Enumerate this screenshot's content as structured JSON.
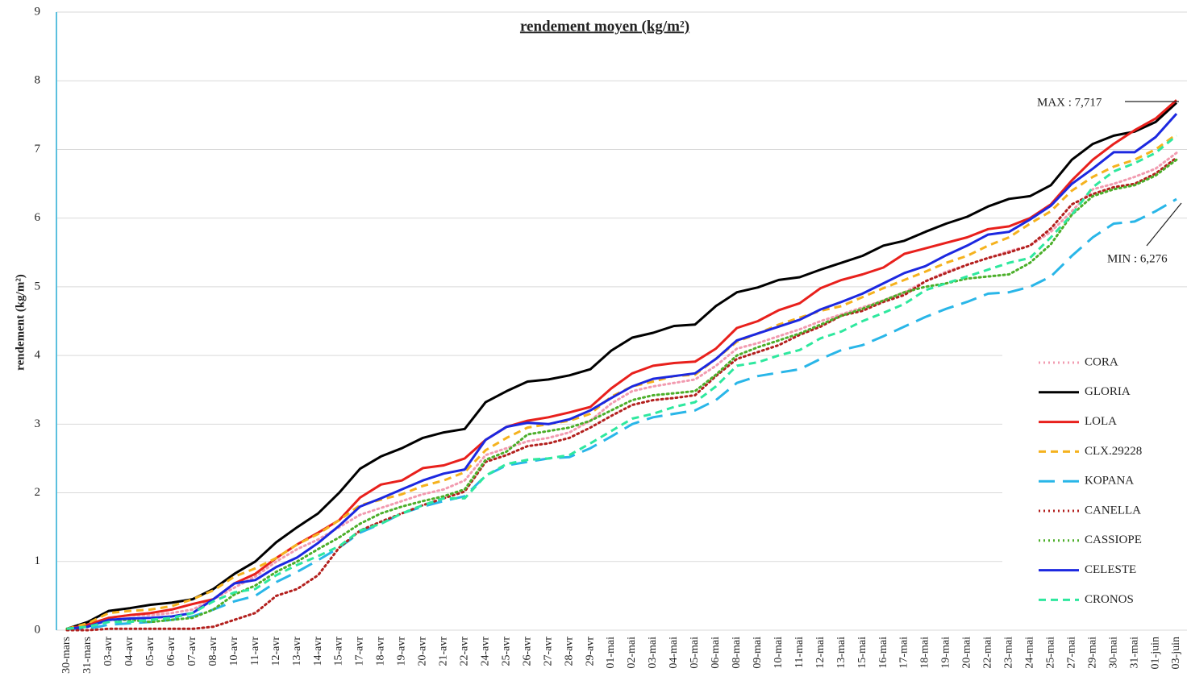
{
  "chart_data": {
    "type": "line",
    "title": "rendement moyen (kg/m²)",
    "y_label": "rendement (kg/m²)",
    "categories": [
      "30-mars",
      "31-mars",
      "03-avr",
      "04-avr",
      "05-avr",
      "06-avr",
      "07-avr",
      "08-avr",
      "10-avr",
      "11-avr",
      "12-avr",
      "13-avr",
      "14-avr",
      "15-avr",
      "17-avr",
      "18-avr",
      "19-avr",
      "20-avr",
      "21-avr",
      "22-avr",
      "24-avr",
      "25-avr",
      "26-avr",
      "27-avr",
      "28-avr",
      "29-avr",
      "01-mai",
      "02-mai",
      "03-mai",
      "04-mai",
      "05-mai",
      "06-mai",
      "08-mai",
      "09-mai",
      "10-mai",
      "11-mai",
      "12-mai",
      "13-mai",
      "15-mai",
      "16-mai",
      "17-mai",
      "18-mai",
      "19-mai",
      "20-mai",
      "22-mai",
      "23-mai",
      "24-mai",
      "25-mai",
      "27-mai",
      "29-mai",
      "30-mai",
      "31-mai",
      "01-juin",
      "03-juin"
    ],
    "ylim": [
      0,
      9
    ],
    "yticks": [
      0,
      1,
      2,
      3,
      4,
      5,
      6,
      7,
      8,
      9
    ],
    "grid": true,
    "series": [
      {
        "name": "CORA",
        "color": "#f29bb0",
        "dash": "dotted",
        "values": [
          0.02,
          0.08,
          0.18,
          0.22,
          0.22,
          0.25,
          0.3,
          0.45,
          0.62,
          0.78,
          1.0,
          1.18,
          1.32,
          1.5,
          1.68,
          1.78,
          1.88,
          1.98,
          2.05,
          2.18,
          2.55,
          2.65,
          2.75,
          2.8,
          2.88,
          3.05,
          3.3,
          3.48,
          3.55,
          3.6,
          3.65,
          3.85,
          4.1,
          4.18,
          4.28,
          4.38,
          4.5,
          4.6,
          4.7,
          4.8,
          4.92,
          5.08,
          5.22,
          5.32,
          5.42,
          5.52,
          5.6,
          5.8,
          6.1,
          6.42,
          6.5,
          6.6,
          6.72,
          6.95
        ]
      },
      {
        "name": "GLORIA",
        "color": "#000000",
        "dash": "solid",
        "values": [
          0.02,
          0.12,
          0.28,
          0.32,
          0.37,
          0.4,
          0.45,
          0.6,
          0.82,
          1.0,
          1.28,
          1.5,
          1.7,
          2.0,
          2.35,
          2.53,
          2.65,
          2.8,
          2.88,
          2.93,
          3.32,
          3.48,
          3.62,
          3.65,
          3.71,
          3.8,
          4.07,
          4.26,
          4.33,
          4.43,
          4.45,
          4.72,
          4.92,
          4.99,
          5.1,
          5.14,
          5.25,
          5.35,
          5.45,
          5.6,
          5.67,
          5.8,
          5.92,
          6.02,
          6.17,
          6.28,
          6.32,
          6.48,
          6.85,
          7.08,
          7.2,
          7.26,
          7.4,
          7.68
        ]
      },
      {
        "name": "LOLA",
        "color": "#e8201c",
        "dash": "solid",
        "values": [
          0.02,
          0.08,
          0.18,
          0.22,
          0.25,
          0.3,
          0.38,
          0.45,
          0.68,
          0.82,
          1.05,
          1.25,
          1.42,
          1.6,
          1.93,
          2.12,
          2.18,
          2.36,
          2.4,
          2.5,
          2.77,
          2.96,
          3.05,
          3.1,
          3.17,
          3.25,
          3.52,
          3.74,
          3.85,
          3.89,
          3.91,
          4.1,
          4.4,
          4.5,
          4.66,
          4.76,
          4.98,
          5.1,
          5.18,
          5.28,
          5.48,
          5.56,
          5.64,
          5.72,
          5.84,
          5.88,
          6.0,
          6.2,
          6.55,
          6.85,
          7.08,
          7.28,
          7.45,
          7.717
        ]
      },
      {
        "name": "CLX.29228",
        "color": "#f5b21e",
        "dash": "dashed",
        "values": [
          0.02,
          0.1,
          0.25,
          0.28,
          0.3,
          0.35,
          0.45,
          0.58,
          0.78,
          0.9,
          1.05,
          1.25,
          1.4,
          1.6,
          1.82,
          1.9,
          1.98,
          2.1,
          2.18,
          2.3,
          2.62,
          2.8,
          2.95,
          3.0,
          3.05,
          3.15,
          3.4,
          3.55,
          3.62,
          3.7,
          3.72,
          3.95,
          4.2,
          4.32,
          4.45,
          4.55,
          4.65,
          4.72,
          4.85,
          4.98,
          5.1,
          5.22,
          5.35,
          5.45,
          5.6,
          5.72,
          5.92,
          6.1,
          6.4,
          6.6,
          6.75,
          6.85,
          7.0,
          7.22
        ]
      },
      {
        "name": "KOPANA",
        "color": "#29b6e8",
        "dash": "long",
        "values": [
          0.02,
          0.02,
          0.08,
          0.1,
          0.12,
          0.15,
          0.2,
          0.3,
          0.42,
          0.5,
          0.7,
          0.85,
          1.02,
          1.2,
          1.42,
          1.55,
          1.7,
          1.8,
          1.88,
          1.95,
          2.25,
          2.4,
          2.45,
          2.5,
          2.52,
          2.65,
          2.82,
          3.0,
          3.1,
          3.15,
          3.2,
          3.35,
          3.6,
          3.7,
          3.75,
          3.8,
          3.95,
          4.08,
          4.15,
          4.28,
          4.42,
          4.56,
          4.68,
          4.78,
          4.9,
          4.92,
          5.0,
          5.15,
          5.45,
          5.72,
          5.92,
          5.95,
          6.1,
          6.276
        ]
      },
      {
        "name": "CANELLA",
        "color": "#b3201e",
        "dash": "dotted",
        "values": [
          0.0,
          0.0,
          0.02,
          0.02,
          0.02,
          0.02,
          0.02,
          0.05,
          0.15,
          0.25,
          0.5,
          0.6,
          0.8,
          1.2,
          1.45,
          1.58,
          1.7,
          1.82,
          1.92,
          2.02,
          2.45,
          2.55,
          2.68,
          2.72,
          2.8,
          2.95,
          3.12,
          3.28,
          3.35,
          3.38,
          3.42,
          3.7,
          3.95,
          4.05,
          4.15,
          4.3,
          4.42,
          4.58,
          4.65,
          4.78,
          4.88,
          5.08,
          5.2,
          5.32,
          5.42,
          5.5,
          5.6,
          5.85,
          6.2,
          6.35,
          6.45,
          6.5,
          6.65,
          6.88
        ]
      },
      {
        "name": "CASSIOPE",
        "color": "#4caf2a",
        "dash": "dotted",
        "values": [
          0.02,
          0.05,
          0.15,
          0.15,
          0.12,
          0.15,
          0.18,
          0.3,
          0.52,
          0.65,
          0.85,
          1.0,
          1.18,
          1.35,
          1.55,
          1.7,
          1.8,
          1.88,
          1.95,
          2.05,
          2.48,
          2.6,
          2.85,
          2.9,
          2.95,
          3.05,
          3.2,
          3.35,
          3.42,
          3.45,
          3.48,
          3.72,
          4.0,
          4.12,
          4.22,
          4.32,
          4.45,
          4.58,
          4.68,
          4.8,
          4.92,
          5.0,
          5.05,
          5.12,
          5.15,
          5.18,
          5.35,
          5.62,
          6.05,
          6.32,
          6.42,
          6.48,
          6.62,
          6.85
        ]
      },
      {
        "name": "CELESTE",
        "color": "#1c28e0",
        "dash": "solid",
        "values": [
          0.02,
          0.05,
          0.15,
          0.17,
          0.18,
          0.2,
          0.25,
          0.45,
          0.68,
          0.73,
          0.92,
          1.06,
          1.27,
          1.52,
          1.8,
          1.92,
          2.05,
          2.18,
          2.28,
          2.34,
          2.77,
          2.96,
          3.02,
          3.0,
          3.07,
          3.2,
          3.38,
          3.55,
          3.66,
          3.7,
          3.74,
          3.95,
          4.22,
          4.32,
          4.42,
          4.52,
          4.67,
          4.78,
          4.9,
          5.05,
          5.2,
          5.3,
          5.46,
          5.6,
          5.76,
          5.8,
          5.98,
          6.18,
          6.5,
          6.72,
          6.96,
          6.96,
          7.18,
          7.52
        ]
      },
      {
        "name": "CRONOS",
        "color": "#2ee89e",
        "dash": "dashed",
        "values": [
          0.02,
          0.05,
          0.12,
          0.12,
          0.15,
          0.18,
          0.25,
          0.42,
          0.55,
          0.6,
          0.8,
          0.95,
          1.08,
          1.22,
          1.45,
          1.55,
          1.7,
          1.82,
          1.92,
          1.92,
          2.25,
          2.42,
          2.48,
          2.5,
          2.55,
          2.72,
          2.9,
          3.08,
          3.15,
          3.25,
          3.32,
          3.55,
          3.85,
          3.9,
          4.0,
          4.08,
          4.25,
          4.35,
          4.5,
          4.62,
          4.75,
          4.95,
          5.05,
          5.15,
          5.25,
          5.35,
          5.42,
          5.72,
          6.05,
          6.45,
          6.68,
          6.8,
          6.95,
          7.2
        ]
      }
    ],
    "annotations": [
      "MAX : 7,717",
      "MIN : 6,276"
    ]
  }
}
